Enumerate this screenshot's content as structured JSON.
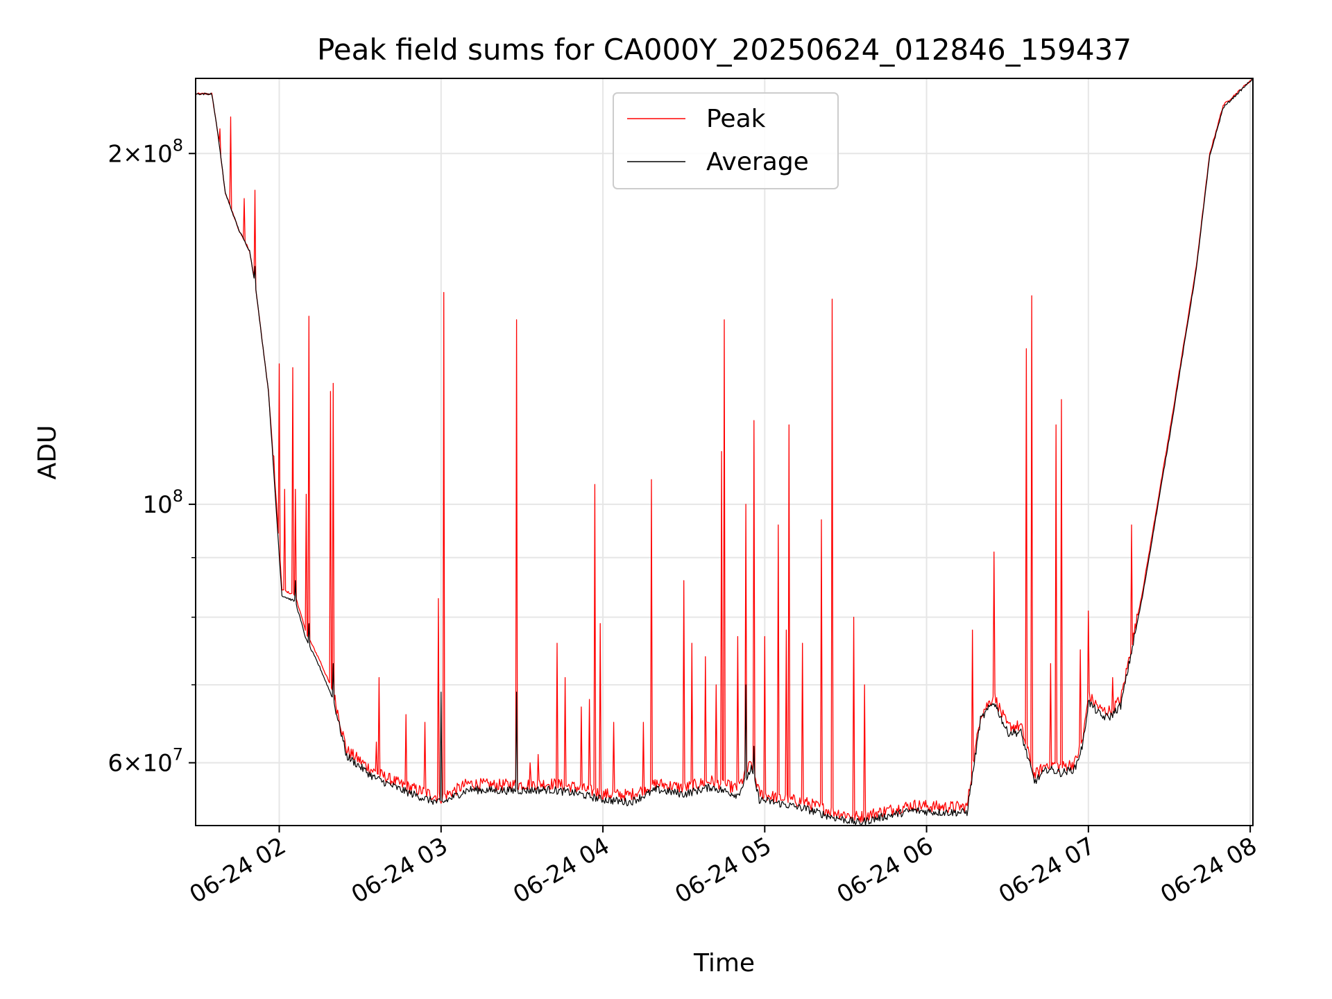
{
  "chart_data": {
    "type": "line",
    "title": "Peak field sums for CA000Y_20250624_012846_159437",
    "xlabel": "Time",
    "ylabel": "ADU",
    "x_axis_type": "datetime",
    "x_range": [
      "2025-06-24 01:29:00",
      "2025-06-24 08:01:00"
    ],
    "y_scale": "log",
    "ylim": [
      53000000,
      232000000
    ],
    "grid": true,
    "legend_position": "upper center",
    "x_ticks": [
      {
        "t": "2025-06-24 02:00",
        "label": "06-24 02"
      },
      {
        "t": "2025-06-24 03:00",
        "label": "06-24 03"
      },
      {
        "t": "2025-06-24 04:00",
        "label": "06-24 04"
      },
      {
        "t": "2025-06-24 05:00",
        "label": "06-24 05"
      },
      {
        "t": "2025-06-24 06:00",
        "label": "06-24 06"
      },
      {
        "t": "2025-06-24 07:00",
        "label": "06-24 07"
      },
      {
        "t": "2025-06-24 08:00",
        "label": "06-24 08"
      }
    ],
    "y_major_ticks": [
      {
        "value": 60000000,
        "mant": "6",
        "base": "10",
        "exp": "7"
      },
      {
        "value": 100000000,
        "mant": "",
        "base": "10",
        "exp": "8"
      },
      {
        "value": 200000000,
        "mant": "2",
        "base": "10",
        "exp": "8"
      }
    ],
    "y_minor_grid": [
      70000000,
      80000000,
      90000000
    ],
    "series": [
      {
        "name": "Peak",
        "color": "#ff0000",
        "baseline": [
          [
            "2025-06-24 01:29:00",
            225000000
          ],
          [
            "2025-06-24 01:35:00",
            225000000
          ],
          [
            "2025-06-24 01:37:00",
            210000000
          ],
          [
            "2025-06-24 01:40:00",
            185000000
          ],
          [
            "2025-06-24 01:45:00",
            172000000
          ],
          [
            "2025-06-24 01:49:00",
            165000000
          ],
          [
            "2025-06-24 01:51:00",
            155000000
          ],
          [
            "2025-06-24 01:56:00",
            125000000
          ],
          [
            "2025-06-24 01:59:00",
            100000000
          ],
          [
            "2025-06-24 02:01:00",
            84500000
          ],
          [
            "2025-06-24 02:06:00",
            83500000
          ],
          [
            "2025-06-24 02:10:00",
            77500000
          ],
          [
            "2025-06-24 02:15:00",
            73500000
          ],
          [
            "2025-06-24 02:20:00",
            69000000
          ],
          [
            "2025-06-24 02:25:00",
            61500000
          ],
          [
            "2025-06-24 02:35:00",
            59000000
          ],
          [
            "2025-06-24 02:45:00",
            57500000
          ],
          [
            "2025-06-24 02:55:00",
            56500000
          ],
          [
            "2025-06-24 03:00:00",
            56000000
          ],
          [
            "2025-06-24 03:10:00",
            57600000
          ],
          [
            "2025-06-24 03:20:00",
            57400000
          ],
          [
            "2025-06-24 03:30:00",
            57500000
          ],
          [
            "2025-06-24 03:40:00",
            57600000
          ],
          [
            "2025-06-24 03:50:00",
            57200000
          ],
          [
            "2025-06-24 04:00:00",
            56400000
          ],
          [
            "2025-06-24 04:10:00",
            56300000
          ],
          [
            "2025-06-24 04:20:00",
            57600000
          ],
          [
            "2025-06-24 04:30:00",
            57100000
          ],
          [
            "2025-06-24 04:40:00",
            57900000
          ],
          [
            "2025-06-24 04:50:00",
            57000000
          ],
          [
            "2025-06-24 04:55:00",
            60000000
          ],
          [
            "2025-06-24 04:58:00",
            56500000
          ],
          [
            "2025-06-24 05:05:00",
            56000000
          ],
          [
            "2025-06-24 05:15:00",
            55500000
          ],
          [
            "2025-06-24 05:25:00",
            54500000
          ],
          [
            "2025-06-24 05:35:00",
            53900000
          ],
          [
            "2025-06-24 05:45:00",
            54600000
          ],
          [
            "2025-06-24 05:55:00",
            55200000
          ],
          [
            "2025-06-24 06:05:00",
            55000000
          ],
          [
            "2025-06-24 06:15:00",
            55000000
          ],
          [
            "2025-06-24 06:20:00",
            66000000
          ],
          [
            "2025-06-24 06:25:00",
            68500000
          ],
          [
            "2025-06-24 06:30:00",
            64500000
          ],
          [
            "2025-06-24 06:35:00",
            64500000
          ],
          [
            "2025-06-24 06:40:00",
            58500000
          ],
          [
            "2025-06-24 06:45:00",
            60000000
          ],
          [
            "2025-06-24 06:50:00",
            59500000
          ],
          [
            "2025-06-24 06:55:00",
            60000000
          ],
          [
            "2025-06-24 06:58:00",
            63000000
          ],
          [
            "2025-06-24 07:00:00",
            68500000
          ],
          [
            "2025-06-24 07:05:00",
            66500000
          ],
          [
            "2025-06-24 07:08:00",
            66500000
          ],
          [
            "2025-06-24 07:12:00",
            68000000
          ],
          [
            "2025-06-24 07:20:00",
            84000000
          ],
          [
            "2025-06-24 07:30:00",
            115000000
          ],
          [
            "2025-06-24 07:40:00",
            160000000
          ],
          [
            "2025-06-24 07:45:00",
            200000000
          ],
          [
            "2025-06-24 07:50:00",
            220000000
          ],
          [
            "2025-06-24 08:01:00",
            232000000
          ]
        ],
        "spikes": [
          [
            "2025-06-24 01:38:00",
            210000000
          ],
          [
            "2025-06-24 01:42:00",
            215000000
          ],
          [
            "2025-06-24 01:47:00",
            183000000
          ],
          [
            "2025-06-24 01:51:00",
            186000000
          ],
          [
            "2025-06-24 01:58:00",
            110000000
          ],
          [
            "2025-06-24 02:00:00",
            132000000
          ],
          [
            "2025-06-24 02:02:00",
            103000000
          ],
          [
            "2025-06-24 02:05:00",
            131000000
          ],
          [
            "2025-06-24 02:06:00",
            103000000
          ],
          [
            "2025-06-24 02:10:00",
            102000000
          ],
          [
            "2025-06-24 02:11:00",
            145000000
          ],
          [
            "2025-06-24 02:19:00",
            125000000
          ],
          [
            "2025-06-24 02:20:00",
            127000000
          ],
          [
            "2025-06-24 02:36:00",
            62500000
          ],
          [
            "2025-06-24 02:37:00",
            71000000
          ],
          [
            "2025-06-24 02:47:00",
            66000000
          ],
          [
            "2025-06-24 02:54:00",
            65000000
          ],
          [
            "2025-06-24 02:59:00",
            83000000
          ],
          [
            "2025-06-24 03:01:00",
            152000000
          ],
          [
            "2025-06-24 03:28:00",
            144000000
          ],
          [
            "2025-06-24 03:33:00",
            60000000
          ],
          [
            "2025-06-24 03:36:00",
            61000000
          ],
          [
            "2025-06-24 03:43:00",
            76000000
          ],
          [
            "2025-06-24 03:46:00",
            71000000
          ],
          [
            "2025-06-24 03:52:00",
            67000000
          ],
          [
            "2025-06-24 03:55:00",
            68000000
          ],
          [
            "2025-06-24 03:57:00",
            104000000
          ],
          [
            "2025-06-24 03:59:00",
            79000000
          ],
          [
            "2025-06-24 04:04:00",
            65000000
          ],
          [
            "2025-06-24 04:15:00",
            65000000
          ],
          [
            "2025-06-24 04:18:00",
            105000000
          ],
          [
            "2025-06-24 04:30:00",
            86000000
          ],
          [
            "2025-06-24 04:33:00",
            76000000
          ],
          [
            "2025-06-24 04:38:00",
            74000000
          ],
          [
            "2025-06-24 04:42:00",
            70000000
          ],
          [
            "2025-06-24 04:44:00",
            111000000
          ],
          [
            "2025-06-24 04:45:00",
            144000000
          ],
          [
            "2025-06-24 04:50:00",
            77000000
          ],
          [
            "2025-06-24 04:53:00",
            100000000
          ],
          [
            "2025-06-24 04:56:00",
            118000000
          ],
          [
            "2025-06-24 05:00:00",
            77000000
          ],
          [
            "2025-06-24 05:05:00",
            96000000
          ],
          [
            "2025-06-24 05:08:00",
            78000000
          ],
          [
            "2025-06-24 05:09:00",
            117000000
          ],
          [
            "2025-06-24 05:14:00",
            76000000
          ],
          [
            "2025-06-24 05:21:00",
            97000000
          ],
          [
            "2025-06-24 05:25:00",
            150000000
          ],
          [
            "2025-06-24 05:33:00",
            80000000
          ],
          [
            "2025-06-24 05:37:00",
            70000000
          ],
          [
            "2025-06-24 06:17:00",
            78000000
          ],
          [
            "2025-06-24 06:25:00",
            91000000
          ],
          [
            "2025-06-24 06:37:00",
            136000000
          ],
          [
            "2025-06-24 06:39:00",
            151000000
          ],
          [
            "2025-06-24 06:46:00",
            73000000
          ],
          [
            "2025-06-24 06:48:00",
            117000000
          ],
          [
            "2025-06-24 06:50:00",
            123000000
          ],
          [
            "2025-06-24 06:57:00",
            75000000
          ],
          [
            "2025-06-24 07:00:00",
            81000000
          ],
          [
            "2025-06-24 07:09:00",
            71000000
          ],
          [
            "2025-06-24 07:16:00",
            96000000
          ]
        ]
      },
      {
        "name": "Average",
        "color": "#000000",
        "baseline": [
          [
            "2025-06-24 01:29:00",
            225000000
          ],
          [
            "2025-06-24 01:35:00",
            225000000
          ],
          [
            "2025-06-24 01:37:00",
            210000000
          ],
          [
            "2025-06-24 01:40:00",
            185000000
          ],
          [
            "2025-06-24 01:45:00",
            172000000
          ],
          [
            "2025-06-24 01:49:00",
            165000000
          ],
          [
            "2025-06-24 01:51:00",
            155000000
          ],
          [
            "2025-06-24 01:56:00",
            125000000
          ],
          [
            "2025-06-24 01:59:00",
            98000000
          ],
          [
            "2025-06-24 02:01:00",
            83500000
          ],
          [
            "2025-06-24 02:06:00",
            82500000
          ],
          [
            "2025-06-24 02:10:00",
            76500000
          ],
          [
            "2025-06-24 02:15:00",
            72500000
          ],
          [
            "2025-06-24 02:20:00",
            68000000
          ],
          [
            "2025-06-24 02:25:00",
            60800000
          ],
          [
            "2025-06-24 02:35:00",
            58300000
          ],
          [
            "2025-06-24 02:45:00",
            56900000
          ],
          [
            "2025-06-24 02:55:00",
            55800000
          ],
          [
            "2025-06-24 03:00:00",
            55400000
          ],
          [
            "2025-06-24 03:10:00",
            56900000
          ],
          [
            "2025-06-24 03:20:00",
            56800000
          ],
          [
            "2025-06-24 03:30:00",
            56800000
          ],
          [
            "2025-06-24 03:40:00",
            56900000
          ],
          [
            "2025-06-24 03:50:00",
            56500000
          ],
          [
            "2025-06-24 04:00:00",
            55800000
          ],
          [
            "2025-06-24 04:10:00",
            55500000
          ],
          [
            "2025-06-24 04:20:00",
            56900000
          ],
          [
            "2025-06-24 04:30:00",
            56400000
          ],
          [
            "2025-06-24 04:40:00",
            57200000
          ],
          [
            "2025-06-24 04:50:00",
            56300000
          ],
          [
            "2025-06-24 04:55:00",
            59300000
          ],
          [
            "2025-06-24 04:58:00",
            55800000
          ],
          [
            "2025-06-24 05:05:00",
            55400000
          ],
          [
            "2025-06-24 05:15:00",
            54800000
          ],
          [
            "2025-06-24 05:25:00",
            53900000
          ],
          [
            "2025-06-24 05:35:00",
            53300000
          ],
          [
            "2025-06-24 05:45:00",
            54000000
          ],
          [
            "2025-06-24 05:55:00",
            54600000
          ],
          [
            "2025-06-24 06:05:00",
            54400000
          ],
          [
            "2025-06-24 06:15:00",
            54400000
          ],
          [
            "2025-06-24 06:20:00",
            65300000
          ],
          [
            "2025-06-24 06:25:00",
            67700000
          ],
          [
            "2025-06-24 06:30:00",
            63700000
          ],
          [
            "2025-06-24 06:35:00",
            63700000
          ],
          [
            "2025-06-24 06:40:00",
            57800000
          ],
          [
            "2025-06-24 06:45:00",
            59300000
          ],
          [
            "2025-06-24 06:50:00",
            58800000
          ],
          [
            "2025-06-24 06:55:00",
            59300000
          ],
          [
            "2025-06-24 06:58:00",
            62300000
          ],
          [
            "2025-06-24 07:00:00",
            67700000
          ],
          [
            "2025-06-24 07:05:00",
            65700000
          ],
          [
            "2025-06-24 07:08:00",
            65700000
          ],
          [
            "2025-06-24 07:12:00",
            67200000
          ],
          [
            "2025-06-24 07:20:00",
            83200000
          ],
          [
            "2025-06-24 07:30:00",
            114000000
          ],
          [
            "2025-06-24 07:40:00",
            159000000
          ],
          [
            "2025-06-24 07:45:00",
            199000000
          ],
          [
            "2025-06-24 07:50:00",
            219000000
          ],
          [
            "2025-06-24 08:01:00",
            232000000
          ]
        ],
        "spikes": [
          [
            "2025-06-24 01:51:00",
            160000000
          ],
          [
            "2025-06-24 02:06:00",
            86000000
          ],
          [
            "2025-06-24 02:11:00",
            79000000
          ],
          [
            "2025-06-24 02:20:00",
            73000000
          ],
          [
            "2025-06-24 03:00:00",
            69000000
          ],
          [
            "2025-06-24 03:28:00",
            69000000
          ],
          [
            "2025-06-24 04:53:00",
            70000000
          ],
          [
            "2025-06-24 04:56:00",
            62000000
          ]
        ]
      }
    ]
  }
}
